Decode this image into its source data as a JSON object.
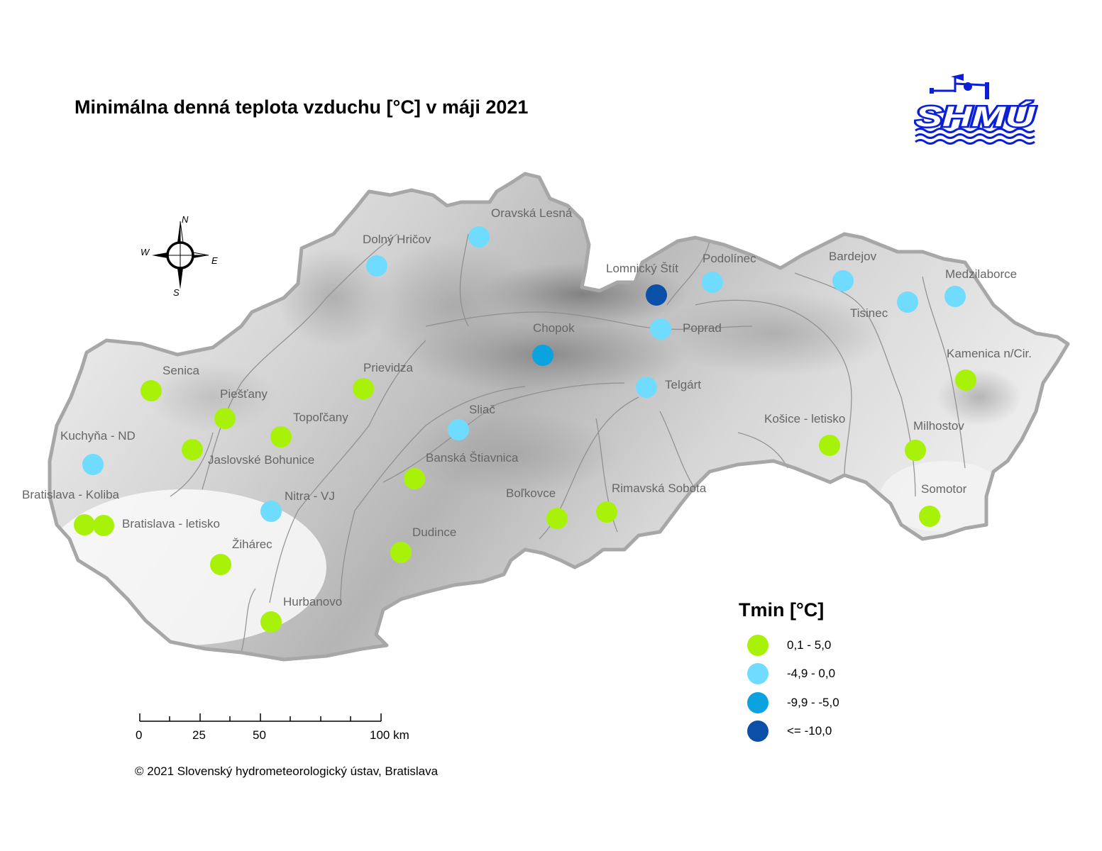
{
  "title": "Minimálna denná teplota vzduchu [°C] v máji 2021",
  "logo": {
    "text": "SHMÚ",
    "color": "#0b1fd6"
  },
  "compass": {
    "n": "N",
    "s": "S",
    "e": "E",
    "w": "W"
  },
  "legend": {
    "title": "Tmin [°C]",
    "classes": [
      {
        "label": "0,1 - 5,0",
        "color": "#a8f20a"
      },
      {
        "label": "-4,9 - 0,0",
        "color": "#6fdcff"
      },
      {
        "label": "-9,9 - -5,0",
        "color": "#0aa3e0"
      },
      {
        "label": "<= -10,0",
        "color": "#0a4fa8"
      }
    ]
  },
  "scale": {
    "ticks": [
      "0",
      "25",
      "50",
      "100 km"
    ]
  },
  "copyright": "© 2021 Slovenský hydrometeorologický ústav, Bratislava",
  "stations": [
    {
      "name": "Oravská Lesná",
      "class": 1
    },
    {
      "name": "Dolný Hričov",
      "class": 1
    },
    {
      "name": "Lomnický Štít",
      "class": 3
    },
    {
      "name": "Podolínec",
      "class": 1
    },
    {
      "name": "Bardejov",
      "class": 1
    },
    {
      "name": "Medzilaborce",
      "class": 1
    },
    {
      "name": "Tisinec",
      "class": 1
    },
    {
      "name": "Poprad",
      "class": 1
    },
    {
      "name": "Chopok",
      "class": 2
    },
    {
      "name": "Kamenica n/Cir.",
      "class": 0
    },
    {
      "name": "Senica",
      "class": 0
    },
    {
      "name": "Prievidza",
      "class": 0
    },
    {
      "name": "Telgárt",
      "class": 1
    },
    {
      "name": "Piešťany",
      "class": 0
    },
    {
      "name": "Topoľčany",
      "class": 0
    },
    {
      "name": "Sliač",
      "class": 1
    },
    {
      "name": "Kuchyňa - ND",
      "class": 1
    },
    {
      "name": "Jaslovské Bohunice",
      "class": 0
    },
    {
      "name": "Košice - letisko",
      "class": 0
    },
    {
      "name": "Milhostov",
      "class": 0
    },
    {
      "name": "Banská Štiavnica",
      "class": 0
    },
    {
      "name": "Bratislava - Koliba",
      "class": 0
    },
    {
      "name": "Nitra - VJ",
      "class": 1
    },
    {
      "name": "Boľkovce",
      "class": 0
    },
    {
      "name": "Rimavská Sobota",
      "class": 0
    },
    {
      "name": "Somotor",
      "class": 0
    },
    {
      "name": "Bratislava - letisko",
      "class": 0
    },
    {
      "name": "Žihárec",
      "class": 0
    },
    {
      "name": "Dudince",
      "class": 0
    },
    {
      "name": "Hurbanovo",
      "class": 0
    }
  ]
}
